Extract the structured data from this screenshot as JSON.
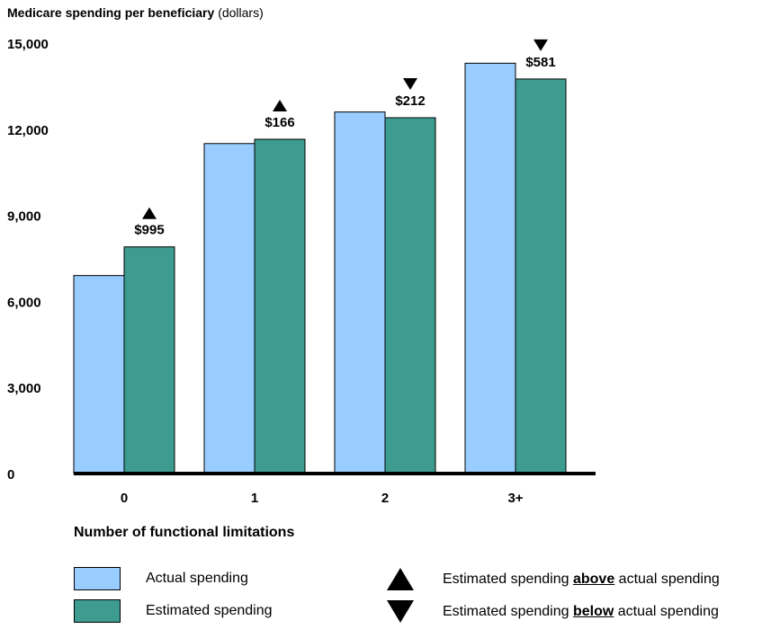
{
  "chart_data": {
    "type": "bar",
    "title": "Medicare spending per beneficiary",
    "title_units": "(dollars)",
    "xlabel": "Number of functional limitations",
    "ylabel": "",
    "ylim": [
      0,
      15000
    ],
    "yticks": [
      0,
      3000,
      6000,
      9000,
      12000,
      15000
    ],
    "ytick_labels": [
      "0",
      "3,000",
      "6,000",
      "9,000",
      "12,000",
      "15,000"
    ],
    "categories": [
      "0",
      "1",
      "2",
      "3+"
    ],
    "series": [
      {
        "name": "Actual spending",
        "values": [
          6900,
          11500,
          12600,
          14300
        ],
        "color": "#99ccff"
      },
      {
        "name": "Estimated spending",
        "values": [
          7900,
          11650,
          12400,
          13750
        ],
        "color": "#3d9b8f"
      }
    ],
    "annotations": [
      {
        "category": "0",
        "label": "$995",
        "direction": "up"
      },
      {
        "category": "1",
        "label": "$166",
        "direction": "up"
      },
      {
        "category": "2",
        "label": "$212",
        "direction": "down"
      },
      {
        "category": "3+",
        "label": "$581",
        "direction": "down"
      }
    ],
    "grid": false
  },
  "legend": {
    "actual": "Actual spending",
    "estimated": "Estimated spending",
    "above_prefix": "Estimated spending ",
    "above_word": "above",
    "above_suffix": " actual spending",
    "below_prefix": "Estimated spending ",
    "below_word": "below",
    "below_suffix": " actual spending"
  }
}
